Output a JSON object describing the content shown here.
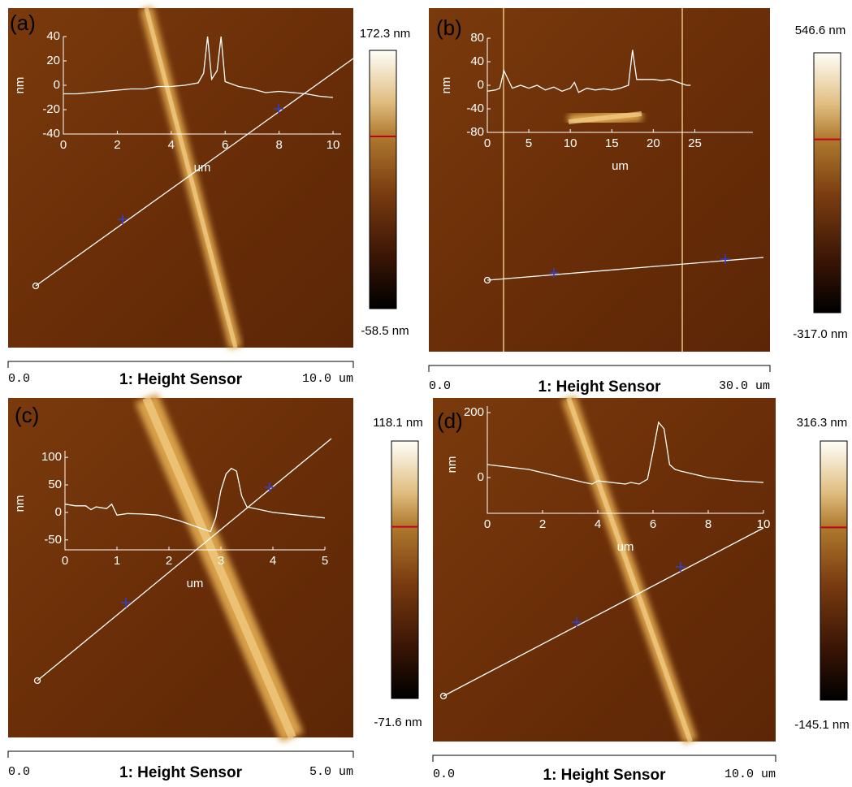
{
  "chart_data": [
    {
      "type": "line",
      "xlabel": "um",
      "ylabel": "nm",
      "x": [
        0,
        0.5,
        1,
        1.5,
        2,
        2.5,
        3,
        3.5,
        4,
        4.5,
        5,
        5.2,
        5.35,
        5.5,
        5.7,
        5.85,
        6,
        6.5,
        7,
        7.5,
        8,
        8.5,
        9,
        9.5,
        10
      ],
      "values": [
        -7,
        -7,
        -6,
        -5,
        -4,
        -3,
        -3,
        -1,
        -1,
        0,
        2,
        10,
        40,
        5,
        12,
        40,
        3,
        -1,
        -3,
        -6,
        -5,
        -6,
        -7,
        -9,
        -10
      ],
      "xlim": [
        0,
        10.3
      ],
      "ylim": [
        -40,
        40
      ],
      "xticks": [
        0,
        2,
        4,
        6,
        8,
        10
      ],
      "yticks": [
        -40,
        -20,
        0,
        20,
        40
      ],
      "panel": {
        "label": "(a)",
        "scale_max": "172.3 nm",
        "scale_min": "-58.5 nm",
        "bar_start": "0.0",
        "bar_title": "1: Height Sensor",
        "bar_end": "10.0 um"
      }
    },
    {
      "type": "line",
      "xlabel": "um",
      "ylabel": "nm",
      "x": [
        0,
        1,
        1.5,
        2,
        3,
        4,
        5,
        6,
        7,
        8,
        9,
        10,
        10.5,
        11,
        12,
        13,
        14,
        15,
        16,
        17,
        17.5,
        18,
        19,
        20,
        21,
        22,
        23,
        24,
        24.5
      ],
      "values": [
        -10,
        -8,
        -5,
        25,
        -5,
        0,
        -5,
        0,
        -8,
        -3,
        -10,
        -5,
        5,
        -12,
        -5,
        -8,
        -6,
        -8,
        -5,
        0,
        60,
        10,
        10,
        10,
        8,
        10,
        5,
        0,
        0
      ],
      "xlim": [
        0,
        32
      ],
      "ylim": [
        -80,
        80
      ],
      "xticks": [
        0,
        5,
        10,
        15,
        20,
        25
      ],
      "yticks": [
        -80,
        -40,
        0,
        40,
        80
      ],
      "panel": {
        "label": "(b)",
        "scale_max": "546.6 nm",
        "scale_min": "-317.0 nm",
        "bar_start": "0.0",
        "bar_title": "1: Height Sensor",
        "bar_end": "30.0 um"
      }
    },
    {
      "type": "line",
      "xlabel": "um",
      "ylabel": "nm",
      "x": [
        0,
        0.2,
        0.4,
        0.5,
        0.6,
        0.8,
        0.9,
        1,
        1.2,
        1.5,
        1.8,
        2.0,
        2.2,
        2.5,
        2.8,
        2.9,
        3.0,
        3.1,
        3.2,
        3.3,
        3.4,
        3.5,
        4,
        4.5,
        5
      ],
      "values": [
        15,
        12,
        12,
        5,
        10,
        7,
        15,
        -5,
        -2,
        -3,
        -5,
        -10,
        -15,
        -25,
        -35,
        -10,
        40,
        70,
        80,
        75,
        30,
        10,
        0,
        -5,
        -10
      ],
      "xlim": [
        0,
        5
      ],
      "ylim": [
        -68,
        112
      ],
      "xticks": [
        0,
        1,
        2,
        3,
        4,
        5
      ],
      "yticks": [
        -50,
        0,
        50,
        100
      ],
      "panel": {
        "label": "(c)",
        "scale_max": "118.1 nm",
        "scale_min": "-71.6 nm",
        "bar_start": "0.0",
        "bar_title": "1: Height Sensor",
        "bar_end": "5.0 um"
      }
    },
    {
      "type": "line",
      "xlabel": "um",
      "ylabel": "nm",
      "x": [
        0,
        0.5,
        1,
        1.5,
        2,
        2.5,
        3,
        3.5,
        3.8,
        4,
        4.5,
        5,
        5.2,
        5.5,
        5.8,
        6,
        6.2,
        6.4,
        6.6,
        6.8,
        7,
        7.5,
        8,
        9,
        10
      ],
      "values": [
        40,
        35,
        30,
        25,
        15,
        5,
        -5,
        -15,
        -20,
        -10,
        -15,
        -20,
        -15,
        -20,
        -5,
        80,
        170,
        150,
        40,
        25,
        20,
        10,
        0,
        -10,
        -15
      ],
      "xlim": [
        0,
        10
      ],
      "ylim": [
        -110,
        220
      ],
      "xticks": [
        0,
        2,
        4,
        6,
        8,
        10
      ],
      "yticks": [
        0,
        200
      ],
      "panel": {
        "label": "(d)",
        "scale_max": "316.3 nm",
        "scale_min": "-145.1 nm",
        "bar_start": "0.0",
        "bar_title": "1: Height Sensor",
        "bar_end": "10.0 um"
      }
    }
  ]
}
